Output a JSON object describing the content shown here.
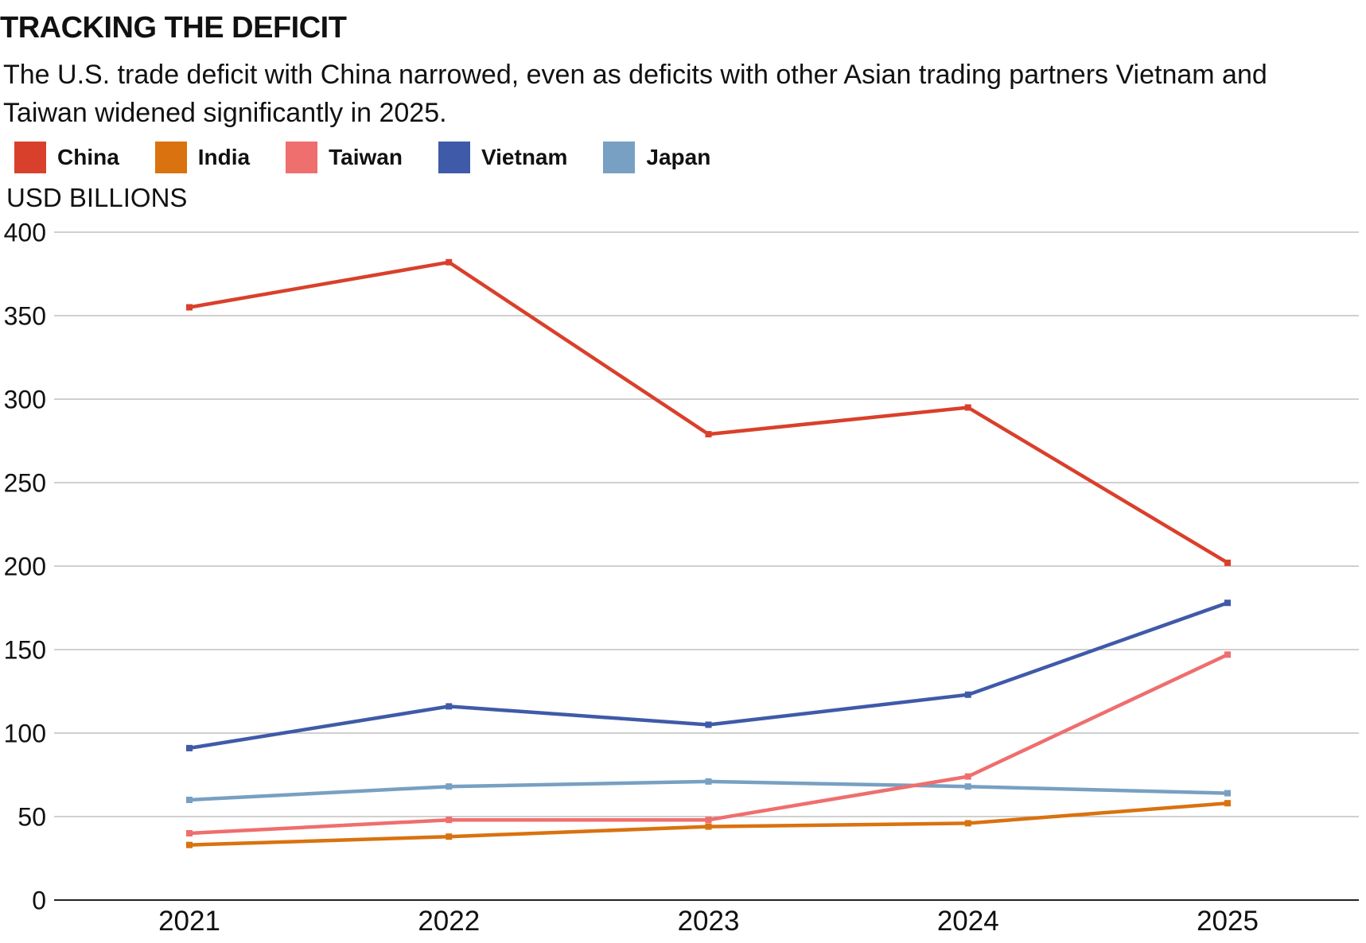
{
  "title": "TRACKING THE DEFICIT",
  "subtitle": "The U.S. trade deficit with China narrowed, even as deficits with other Asian trading partners Vietnam and Taiwan widened significantly in 2025.",
  "unit_label": "USD BILLIONS",
  "legend": [
    {
      "label": "China",
      "color": "#d9402b"
    },
    {
      "label": "India",
      "color": "#d9720f"
    },
    {
      "label": "Taiwan",
      "color": "#ef6e6e"
    },
    {
      "label": "Vietnam",
      "color": "#3f5aa8"
    },
    {
      "label": "Japan",
      "color": "#77a0c2"
    }
  ],
  "chart_data": {
    "type": "line",
    "title": "TRACKING THE DEFICIT",
    "ylabel": "USD BILLIONS",
    "xlabel": "",
    "categories": [
      "2021",
      "2022",
      "2023",
      "2024",
      "2025"
    ],
    "ylim": [
      0,
      400
    ],
    "yticks": [
      0,
      50,
      100,
      150,
      200,
      250,
      300,
      350,
      400
    ],
    "ytick_labels": [
      "0",
      "50",
      "100",
      "150",
      "200",
      "250",
      "300",
      "350",
      "400"
    ],
    "grid": true,
    "legend_position": "top-left",
    "series": [
      {
        "name": "China",
        "color": "#d9402b",
        "values": [
          355,
          382,
          279,
          295,
          202
        ]
      },
      {
        "name": "India",
        "color": "#d9720f",
        "values": [
          33,
          38,
          44,
          46,
          58
        ]
      },
      {
        "name": "Taiwan",
        "color": "#ef6e6e",
        "values": [
          40,
          48,
          48,
          74,
          147
        ]
      },
      {
        "name": "Vietnam",
        "color": "#3f5aa8",
        "values": [
          91,
          116,
          105,
          123,
          178
        ]
      },
      {
        "name": "Japan",
        "color": "#77a0c2",
        "values": [
          60,
          68,
          71,
          68,
          64
        ]
      }
    ]
  }
}
